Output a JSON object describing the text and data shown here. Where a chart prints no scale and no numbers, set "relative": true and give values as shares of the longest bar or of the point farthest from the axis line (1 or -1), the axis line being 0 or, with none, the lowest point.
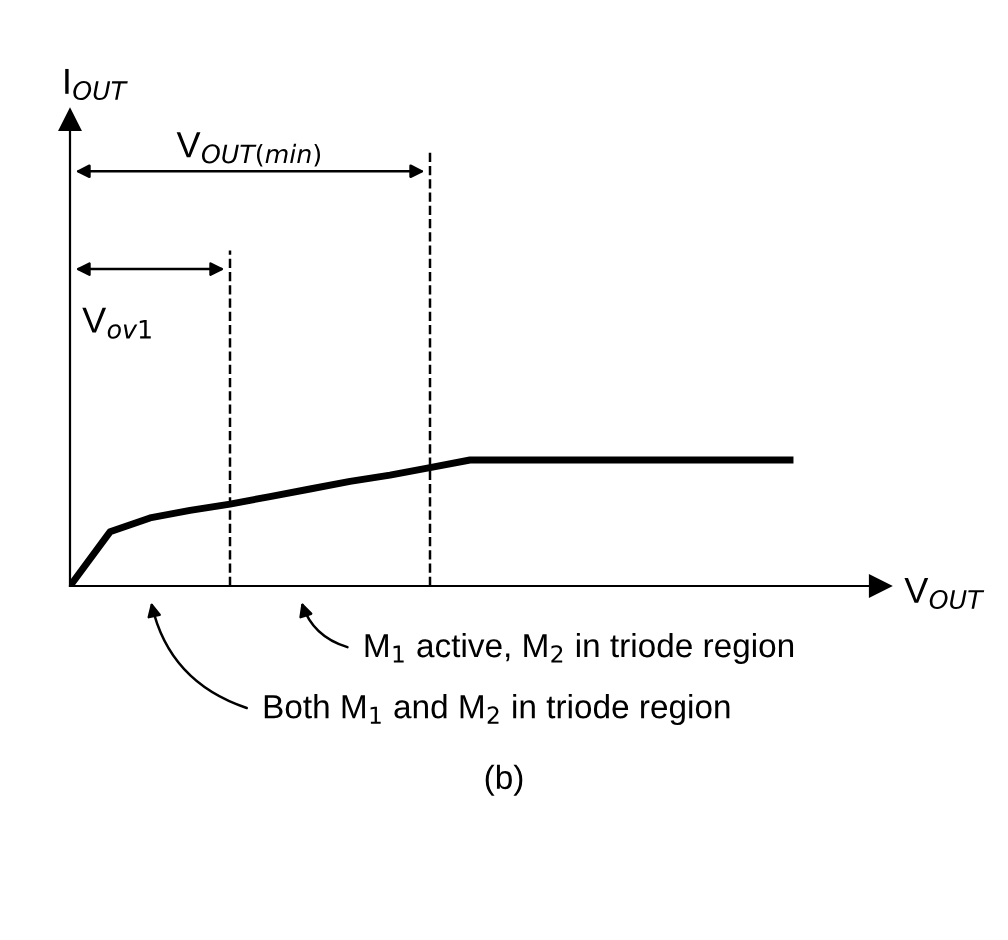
{
  "chart_data": {
    "type": "line",
    "relative": true,
    "xlabel": "V$_{OUT}$",
    "categories": [
      null,
      null,
      null,
      null,
      null,
      null,
      null,
      null,
      null,
      null,
      null,
      null,
      null,
      null,
      null,
      null,
      null,
      null,
      null
    ],
    "series": [
      {
        "color": "#000000",
        "values": [
          0,
          0.43,
          0.54,
          0.6,
          0.65,
          0.71,
          0.77,
          0.83,
          0.88,
          0.94,
          1,
          1,
          1,
          1,
          1,
          1,
          1,
          1,
          1
        ]
      }
    ],
    "annotations": [
      "I$_{OUT}$",
      "V$_{ov1}$",
      "V$_{OUT(min)}$",
      "M$_{1}$ active, M$_{2}$ in triode region",
      "Both M$_{1}$ and M$_{2}$ in triode region",
      "(b)"
    ],
    "marker": "none",
    "line_style": "solid"
  }
}
